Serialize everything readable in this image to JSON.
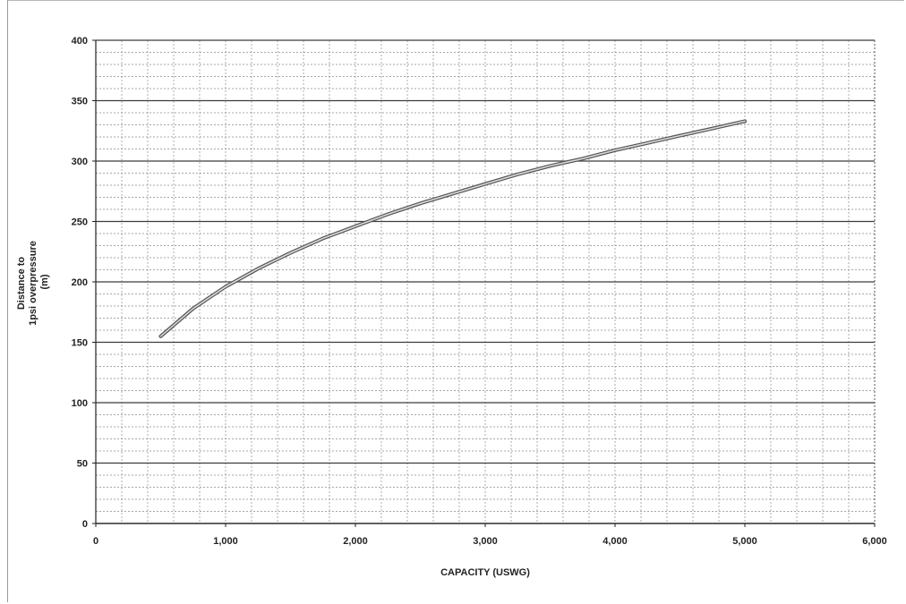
{
  "chart_data": {
    "type": "line",
    "title": "",
    "xlabel": "CAPACITY (USWG)",
    "ylabel_lines": [
      "Distance to",
      "1psi overpressure",
      "(m)"
    ],
    "xlim": [
      0,
      6000
    ],
    "ylim": [
      0,
      400
    ],
    "x_ticks": [
      0,
      1000,
      2000,
      3000,
      4000,
      5000,
      6000
    ],
    "x_tick_labels": [
      "0",
      "1,000",
      "2,000",
      "3,000",
      "4,000",
      "5,000",
      "6,000"
    ],
    "y_ticks": [
      0,
      50,
      100,
      150,
      200,
      250,
      300,
      350,
      400
    ],
    "y_tick_labels": [
      "0",
      "50",
      "100",
      "150",
      "200",
      "250",
      "300",
      "350",
      "400"
    ],
    "grid": true,
    "minor_grid": true,
    "legend": "none",
    "series": [
      {
        "color": "#7f7f7f",
        "x": [
          500,
          750,
          1000,
          1250,
          1500,
          1750,
          2000,
          2250,
          2500,
          2750,
          3000,
          3250,
          3500,
          3750,
          4000,
          4250,
          4500,
          4750,
          5000
        ],
        "y": [
          155,
          178,
          196,
          211,
          224,
          236,
          246,
          256,
          265,
          273,
          281,
          289,
          296,
          302,
          309,
          315,
          321,
          327,
          333
        ]
      }
    ]
  }
}
